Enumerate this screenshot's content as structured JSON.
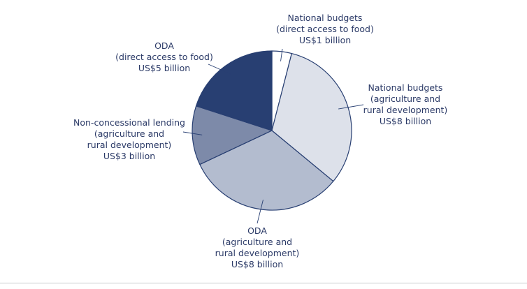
{
  "chart_data": {
    "type": "pie",
    "title": "",
    "unit": "US$ billion",
    "slices": [
      {
        "name": "National budgets (direct access to food)",
        "value": 1,
        "color": "#ffffff",
        "label": [
          "National budgets",
          "(direct access to food)",
          "US$1 billion"
        ]
      },
      {
        "name": "National budgets (agriculture and rural development)",
        "value": 8,
        "color": "#dde1ea",
        "label": [
          "National budgets",
          "(agriculture and",
          "rural development)",
          "US$8 billion"
        ]
      },
      {
        "name": "ODA (agriculture and rural development)",
        "value": 8,
        "color": "#b3bccf",
        "label": [
          "ODA",
          "(agriculture and",
          "rural development)",
          "US$8 billion"
        ]
      },
      {
        "name": "Non-concessional lending (agriculture and rural development)",
        "value": 3,
        "color": "#7d8aa9",
        "label": [
          "Non-concessional lending",
          "(agriculture and",
          "rural development)",
          "US$3 billion"
        ]
      },
      {
        "name": "ODA (direct access to food)",
        "value": 5,
        "color": "#283f72",
        "label": [
          "ODA",
          "(direct access to food)",
          "US$5 billion"
        ]
      }
    ],
    "outline_color": "#283f72",
    "legend": "none"
  }
}
